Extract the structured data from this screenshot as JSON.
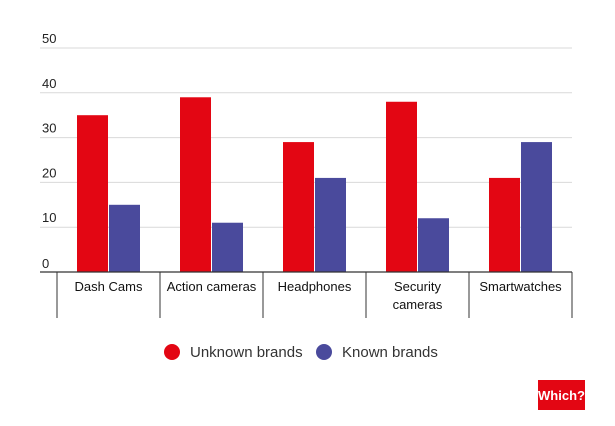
{
  "chart_data": {
    "type": "bar",
    "categories": [
      "Dash Cams",
      "Action cameras",
      "Headphones",
      "Security cameras",
      "Smartwatches"
    ],
    "series": [
      {
        "name": "Unknown brands",
        "color": "#e30613",
        "values": [
          35,
          39,
          29,
          38,
          21
        ]
      },
      {
        "name": "Known brands",
        "color": "#4a4a9c",
        "values": [
          15,
          11,
          21,
          12,
          29
        ]
      }
    ],
    "ylim": [
      0,
      50
    ],
    "yticks": [
      "0",
      "10",
      "20",
      "30",
      "40",
      "50"
    ],
    "grid": true,
    "legend_position": "bottom",
    "title": "",
    "xlabel": "",
    "ylabel": ""
  },
  "branding": {
    "logo_text": "Which?",
    "logo_color": "#e30613"
  }
}
